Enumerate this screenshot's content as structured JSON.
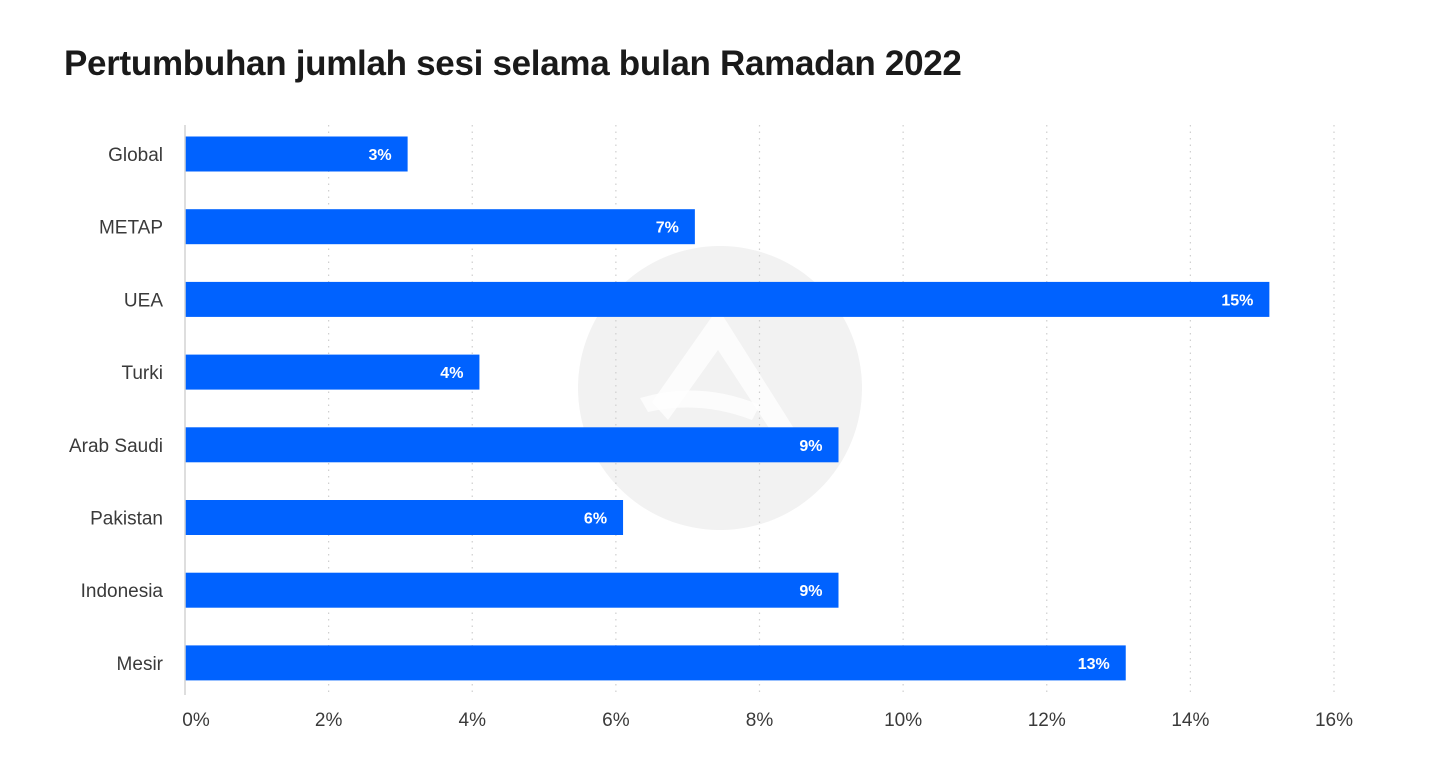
{
  "title": "Pertumbuhan jumlah sesi selama bulan Ramadan 2022",
  "colors": {
    "bar": "#0062ff",
    "grid": "#cfcfcf",
    "axis": "#d4d4d4",
    "watermark": "#f2f2f2",
    "value_text": "#ffffff"
  },
  "chart_data": {
    "type": "bar",
    "orientation": "horizontal",
    "categories": [
      "Global",
      "METAP",
      "UEA",
      "Turki",
      "Arab Saudi",
      "Pakistan",
      "Indonesia",
      "Mesir"
    ],
    "values": [
      3.1,
      7.1,
      15.1,
      4.1,
      9.1,
      6.1,
      9.1,
      13.1
    ],
    "value_labels": [
      "3%",
      "7%",
      "15%",
      "4%",
      "9%",
      "6%",
      "9%",
      "13%"
    ],
    "xlim": [
      0,
      16
    ],
    "x_ticks": [
      0,
      2,
      4,
      6,
      8,
      10,
      12,
      14,
      16
    ],
    "x_tick_labels": [
      "0%",
      "2%",
      "4%",
      "6%",
      "8%",
      "10%",
      "12%",
      "14%",
      "16%"
    ],
    "grid": "vertical dotted",
    "legend": "none",
    "watermark_icon": "logo-watermark-icon"
  }
}
